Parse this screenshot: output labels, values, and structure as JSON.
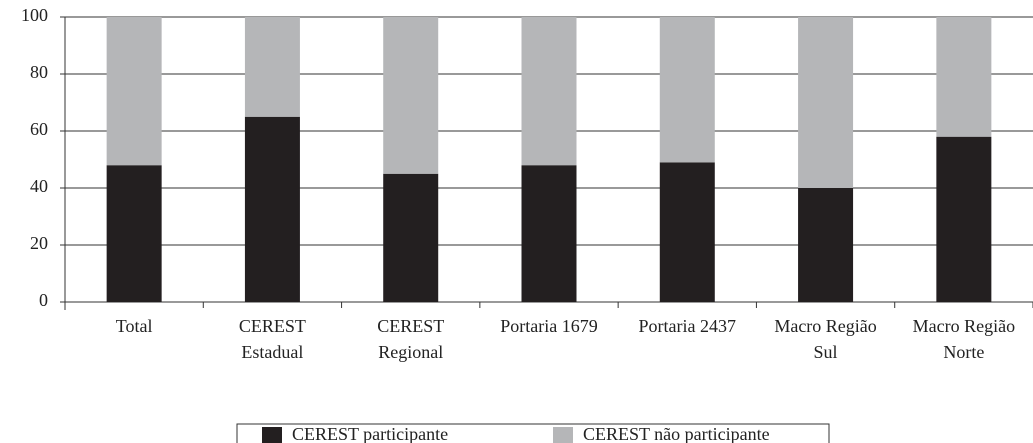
{
  "chart_data": {
    "type": "stacked_bar",
    "categories": [
      "Total",
      "CEREST Estadual",
      "CEREST Regional",
      "Portaria 1679",
      "Portaria 2437",
      "Macro Região Sul",
      "Macro Região Norte"
    ],
    "series": [
      {
        "name": "CEREST participante",
        "color": "#231f20",
        "values": [
          48,
          65,
          45,
          48,
          49,
          40,
          58
        ]
      },
      {
        "name": "CEREST não participante",
        "color": "#b5b6b8",
        "values": [
          52,
          35,
          55,
          52,
          51,
          60,
          42
        ]
      }
    ],
    "ylim": [
      0,
      100
    ],
    "yticks": [
      0,
      20,
      40,
      60,
      80,
      100
    ],
    "grid": true,
    "legend": "bottom"
  }
}
